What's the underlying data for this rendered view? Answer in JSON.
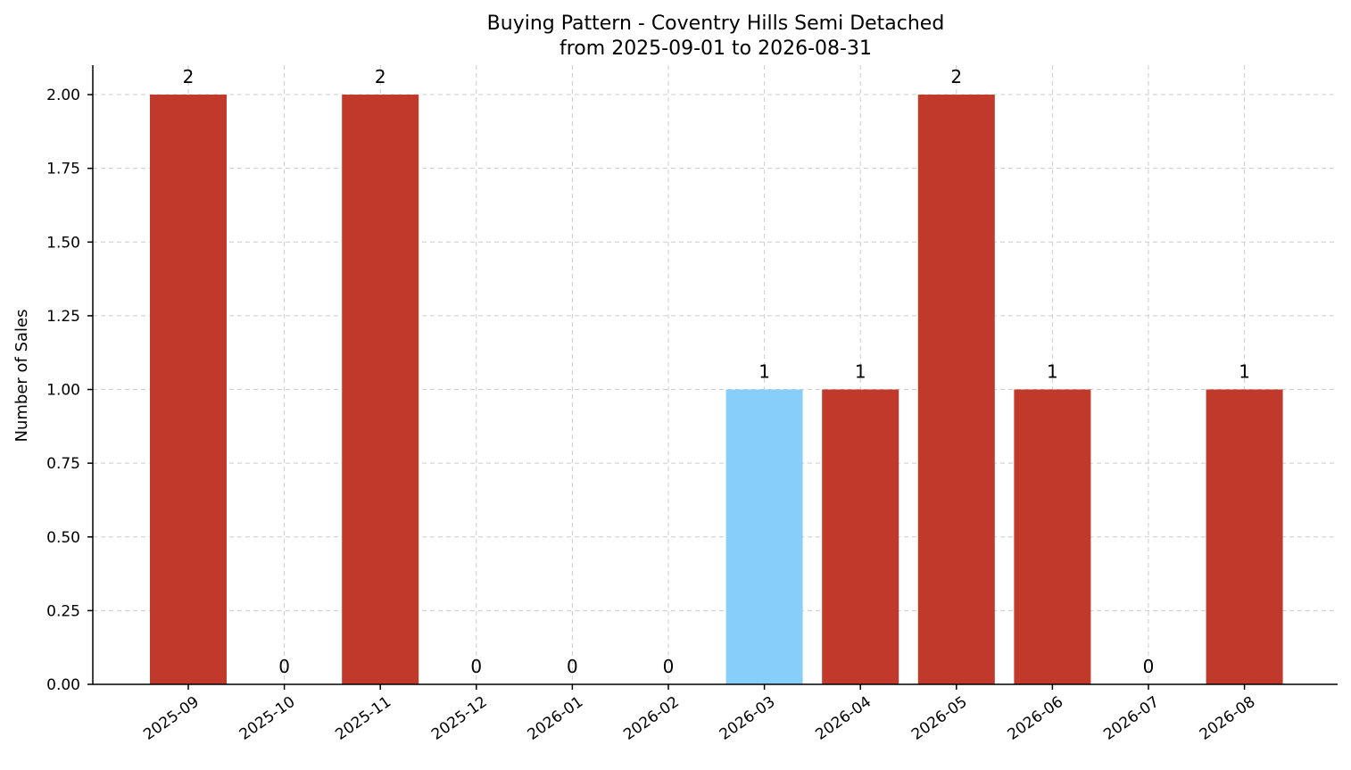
{
  "chart_data": {
    "type": "bar",
    "title_line1": "Buying Pattern - Coventry Hills Semi Detached",
    "title_line2": "from 2025-09-01 to 2026-08-31",
    "xlabel": "",
    "ylabel": "Number of Sales",
    "categories": [
      "2025-09",
      "2025-10",
      "2025-11",
      "2025-12",
      "2026-01",
      "2026-02",
      "2026-03",
      "2026-04",
      "2026-05",
      "2026-06",
      "2026-07",
      "2026-08"
    ],
    "values": [
      2,
      0,
      2,
      0,
      0,
      0,
      1,
      1,
      2,
      1,
      0,
      1
    ],
    "highlight_index": 6,
    "ylim": [
      0,
      2.1
    ],
    "yticks": [
      "0.00",
      "0.25",
      "0.50",
      "0.75",
      "1.00",
      "1.25",
      "1.50",
      "1.75",
      "2.00"
    ],
    "grid": true,
    "colors": {
      "bar": "#c0392b",
      "highlight": "#87cefa"
    }
  }
}
